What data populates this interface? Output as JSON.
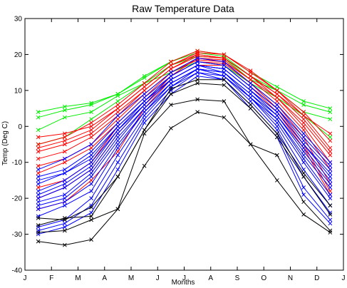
{
  "chart_data": {
    "type": "line",
    "title": "Raw Temperature Data",
    "xlabel": "Months",
    "ylabel": "Temp (Deg C)",
    "xlim": [
      1,
      13
    ],
    "ylim": [
      -40,
      30
    ],
    "x_tick_values": [
      1,
      2,
      3,
      4,
      5,
      6,
      7,
      8,
      9,
      10,
      11,
      12,
      13
    ],
    "x_tick_labels": [
      "J",
      "F",
      "M",
      "A",
      "M",
      "J",
      "J",
      "A",
      "S",
      "O",
      "N",
      "D",
      "J"
    ],
    "y_ticks": [
      -40,
      -30,
      -20,
      -10,
      0,
      10,
      20,
      30
    ],
    "x": [
      1.5,
      2.5,
      3.5,
      4.5,
      5.5,
      6.5,
      7.5,
      8.5,
      9.5,
      10.5,
      11.5,
      12.5
    ],
    "series": [
      {
        "color": "#00ee00",
        "marker": "x",
        "values": [
          4,
          5.5,
          6.5,
          9,
          14,
          18,
          21,
          20,
          15,
          11,
          7,
          5
        ]
      },
      {
        "color": "#00ee00",
        "marker": "x",
        "values": [
          2.5,
          4.5,
          6,
          9,
          13.5,
          18,
          20.5,
          19.5,
          14,
          10,
          6,
          4
        ]
      },
      {
        "color": "#00ee00",
        "marker": "x",
        "values": [
          -1,
          2.5,
          4,
          8.5,
          12,
          17,
          19.5,
          19,
          13,
          10,
          4,
          2
        ]
      },
      {
        "color": "#00ee00",
        "marker": "x",
        "values": [
          -5,
          -3,
          2,
          7,
          12,
          15,
          18,
          17,
          12,
          8,
          3,
          -3
        ]
      },
      {
        "color": "#ff0000",
        "marker": "x",
        "values": [
          -3,
          -2,
          0,
          5,
          11,
          17,
          20,
          19,
          14,
          9,
          3,
          -2
        ]
      },
      {
        "color": "#ff0000",
        "marker": "x",
        "values": [
          -5,
          -3,
          1,
          6,
          12,
          18,
          21,
          20,
          15,
          10,
          4,
          -4
        ]
      },
      {
        "color": "#ff0000",
        "marker": "x",
        "values": [
          -6,
          -4,
          -1,
          5,
          11,
          17,
          20.5,
          20,
          15.5,
          10,
          3,
          -6
        ]
      },
      {
        "color": "#ff0000",
        "marker": "x",
        "values": [
          -7,
          -5,
          -2,
          4,
          10,
          16,
          20,
          19,
          14,
          9,
          2,
          -7
        ]
      },
      {
        "color": "#ff0000",
        "marker": "x",
        "values": [
          -9,
          -7,
          -3,
          3,
          10,
          16,
          19.5,
          19,
          14,
          8,
          1,
          -8
        ]
      },
      {
        "color": "#ff0000",
        "marker": "x",
        "values": [
          -11,
          -9,
          -5,
          2,
          9,
          15,
          19,
          18.5,
          13,
          8,
          0,
          -10
        ]
      },
      {
        "color": "#ff0000",
        "marker": "x",
        "values": [
          -13,
          -10,
          -6,
          1,
          8,
          15,
          18.5,
          18,
          13,
          7,
          -1,
          -12
        ]
      },
      {
        "color": "#ff0000",
        "marker": "x",
        "values": [
          -17,
          -15,
          -10,
          0,
          7,
          14,
          18,
          17.5,
          12,
          6,
          -3,
          -16
        ]
      },
      {
        "color": "#ff0000",
        "marker": "x",
        "values": [
          -20,
          -17,
          -12,
          -2,
          6,
          14,
          19,
          18,
          12,
          5,
          -5,
          -18
        ]
      },
      {
        "color": "#ff0000",
        "marker": "x",
        "values": [
          -23,
          -21,
          -15,
          -7,
          5,
          13,
          17,
          17,
          11,
          4,
          -6,
          -19
        ]
      },
      {
        "color": "#0000ff",
        "marker": "x",
        "values": [
          -12,
          -9,
          -5,
          3,
          9,
          15,
          19,
          18,
          12,
          6,
          -2,
          -10
        ]
      },
      {
        "color": "#0000ff",
        "marker": "x",
        "values": [
          -14,
          -12,
          -7,
          1,
          8,
          14,
          18,
          17,
          11,
          5,
          -3,
          -11
        ]
      },
      {
        "color": "#0000ff",
        "marker": "x",
        "values": [
          -15,
          -13,
          -8,
          0,
          7,
          14,
          18,
          17,
          11,
          5,
          -4,
          -12
        ]
      },
      {
        "color": "#0000ff",
        "marker": "x",
        "values": [
          -16,
          -13,
          -9,
          0,
          7,
          13,
          17,
          16,
          10,
          4,
          -5,
          -13
        ]
      },
      {
        "color": "#0000ff",
        "marker": "x",
        "values": [
          -18,
          -15,
          -10,
          -1,
          7,
          13,
          17,
          16,
          10,
          4,
          -5,
          -14
        ]
      },
      {
        "color": "#0000ff",
        "marker": "x",
        "values": [
          -19,
          -16,
          -11,
          -1,
          6,
          13,
          17,
          16,
          10,
          3,
          -6,
          -15
        ]
      },
      {
        "color": "#0000ff",
        "marker": "x",
        "values": [
          -20,
          -17,
          -12,
          -2,
          6,
          13,
          17,
          15,
          9,
          3,
          -7,
          -16
        ]
      },
      {
        "color": "#0000ff",
        "marker": "x",
        "values": [
          -21,
          -19,
          -13,
          -3,
          5,
          12,
          16,
          15,
          9,
          2,
          -8,
          -17
        ]
      },
      {
        "color": "#0000ff",
        "marker": "x",
        "values": [
          -22,
          -20,
          -14,
          -4,
          5,
          12,
          16,
          15,
          8,
          2,
          -9,
          -19
        ]
      },
      {
        "color": "#0000ff",
        "marker": "x",
        "values": [
          -23,
          -21,
          -16,
          -5,
          4,
          12,
          16,
          14,
          8,
          1,
          -10,
          -20
        ]
      },
      {
        "color": "#0000ff",
        "marker": "x",
        "values": [
          -25,
          -22,
          -18,
          -6,
          4,
          11,
          16,
          14,
          8,
          0,
          -12,
          -22
        ]
      },
      {
        "color": "#0000ff",
        "marker": "x",
        "values": [
          -28,
          -26,
          -20,
          -8,
          3,
          11,
          15,
          14,
          7,
          -1,
          -14,
          -24
        ]
      },
      {
        "color": "#0000ff",
        "marker": "x",
        "values": [
          -29,
          -27,
          -22,
          -10,
          2,
          10,
          15,
          13,
          6,
          -2,
          -17,
          -26
        ]
      },
      {
        "color": "#0000ff",
        "marker": "x",
        "values": [
          -30,
          -28,
          -24,
          -12,
          1,
          9,
          14,
          13,
          5,
          -3,
          -19,
          -27
        ]
      },
      {
        "color": "#000000",
        "marker": "x",
        "values": [
          -25.5,
          -26,
          -22.5,
          -14,
          -1,
          10.5,
          13,
          13,
          6,
          -2,
          -13,
          -22
        ]
      },
      {
        "color": "#000000",
        "marker": "x",
        "values": [
          -27.5,
          -25.5,
          -25,
          -14,
          -1,
          9,
          12,
          11.5,
          5,
          -3,
          -14,
          -24.5
        ]
      },
      {
        "color": "#000000",
        "marker": "x",
        "values": [
          -29.5,
          -29,
          -26,
          -23,
          -2,
          6,
          7.5,
          7,
          -5,
          -8,
          -21,
          -29
        ]
      },
      {
        "color": "#000000",
        "marker": "x",
        "values": [
          -32,
          -33,
          -31.5,
          -23,
          -11,
          -0.5,
          4,
          2.5,
          -5,
          -15,
          -24.5,
          -29.5
        ]
      }
    ]
  }
}
